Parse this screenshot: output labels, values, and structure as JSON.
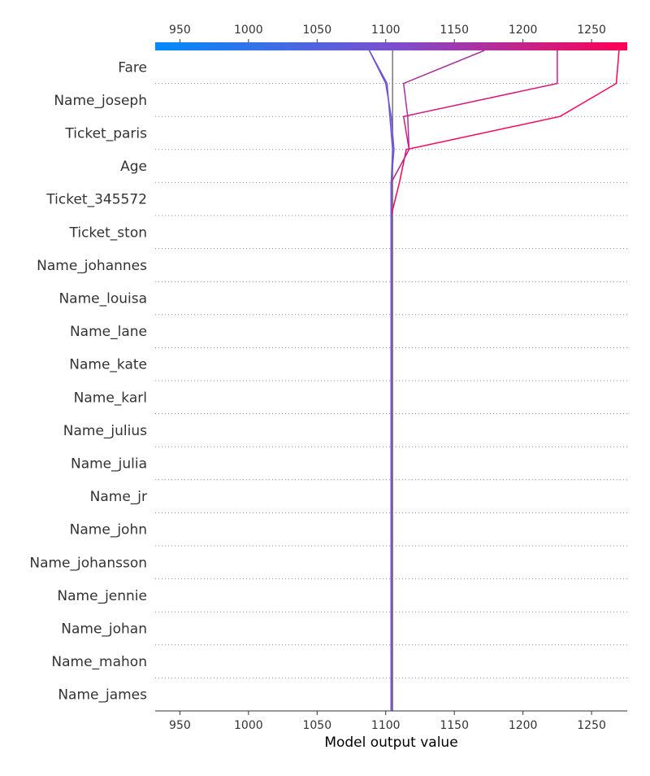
{
  "chart_data": {
    "type": "line",
    "xlabel": "Model output value",
    "xlim": [
      932,
      1276
    ],
    "xticks": [
      950,
      1000,
      1050,
      1100,
      1150,
      1200,
      1250
    ],
    "base_value": 1105,
    "features": [
      "Fare",
      "Name_joseph",
      "Ticket_paris",
      "Age",
      "Ticket_345572",
      "Ticket_ston",
      "Name_johannes",
      "Name_louisa",
      "Name_lane",
      "Name_kate",
      "Name_karl",
      "Name_julius",
      "Name_julia",
      "Name_jr",
      "Name_john",
      "Name_johansson",
      "Name_jennie",
      "Name_johan",
      "Name_mahon",
      "Name_james"
    ],
    "colormap": {
      "low": "#008bfb",
      "mid": "#7a4fd0",
      "high": "#ff0052"
    },
    "grid": "dotted horizontal",
    "series": [
      {
        "values": [
          1270,
          1268,
          1227,
          1115,
          1110,
          1104,
          1104,
          1104,
          1104,
          1104,
          1104,
          1104,
          1104,
          1104,
          1104,
          1104,
          1104,
          1104,
          1104,
          1104,
          1104
        ]
      },
      {
        "values": [
          1225,
          1225,
          1113,
          1117,
          1104,
          1104,
          1104,
          1104,
          1104,
          1104,
          1104,
          1104,
          1104,
          1104,
          1104,
          1104,
          1104,
          1104,
          1104,
          1104,
          1104
        ]
      },
      {
        "values": [
          1172,
          1113,
          1116,
          1117,
          1104,
          1104,
          1104,
          1104,
          1104,
          1104,
          1104,
          1104,
          1104,
          1104,
          1104,
          1104,
          1104,
          1104,
          1104,
          1104,
          1104
        ]
      },
      {
        "values": [
          1088,
          1101,
          1103,
          1105,
          1104,
          1104,
          1104,
          1104,
          1104,
          1104,
          1104,
          1104,
          1104,
          1104,
          1104,
          1104,
          1104,
          1104,
          1104,
          1104,
          1104
        ]
      },
      {
        "values": [
          1088,
          1100,
          1104,
          1106,
          1104,
          1104,
          1104,
          1104,
          1104,
          1104,
          1104,
          1104,
          1104,
          1104,
          1104,
          1104,
          1104,
          1104,
          1104,
          1104,
          1104
        ]
      }
    ]
  }
}
